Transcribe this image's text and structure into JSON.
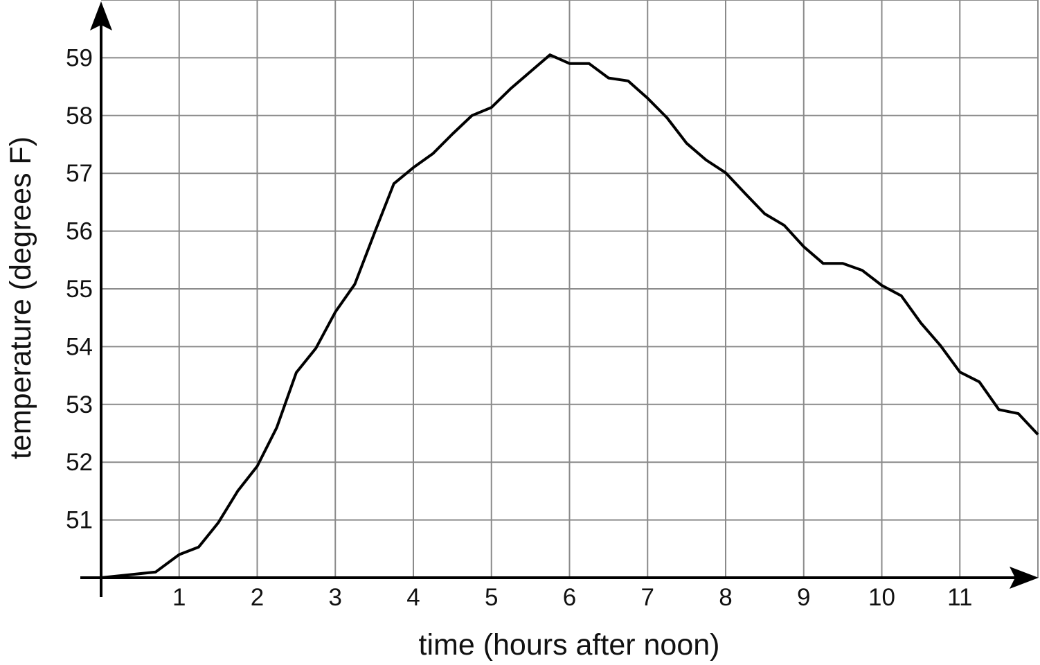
{
  "chart_data": {
    "type": "line",
    "title": "",
    "xlabel": "time (hours after noon)",
    "ylabel": "temperature (degrees F)",
    "xlim": [
      0,
      12
    ],
    "ylim": [
      50,
      60
    ],
    "grid": true,
    "x_ticks": [
      1,
      2,
      3,
      4,
      5,
      6,
      7,
      8,
      9,
      10,
      11
    ],
    "y_ticks": [
      51,
      52,
      53,
      54,
      55,
      56,
      57,
      58,
      59
    ],
    "line_color": "#000000",
    "grid_color": "#8a8a8a",
    "series": [
      {
        "x": [
          0,
          0.7,
          1,
          1.25,
          1.5,
          1.75,
          2,
          2.25,
          2.5,
          2.75,
          3,
          3.25,
          3.5,
          3.75,
          4,
          4.25,
          4.5,
          4.75,
          5,
          5.25,
          5.5,
          5.75,
          6,
          6.25,
          6.5,
          6.75,
          7,
          7.25,
          7.5,
          7.75,
          8,
          8.25,
          8.5,
          8.75,
          9,
          9.25,
          9.5,
          9.75,
          10,
          10.25,
          10.5,
          10.75,
          11,
          11.25,
          11.5,
          11.75,
          12
        ],
        "y": [
          50,
          50.1,
          50.4,
          50.53,
          50.95,
          51.5,
          51.93,
          52.6,
          53.55,
          53.97,
          54.6,
          55.08,
          55.96,
          56.82,
          57.1,
          57.34,
          57.68,
          58.0,
          58.14,
          58.47,
          58.76,
          59.05,
          58.9,
          58.9,
          58.65,
          58.6,
          58.3,
          57.96,
          57.52,
          57.23,
          57.01,
          56.65,
          56.3,
          56.1,
          55.73,
          55.44,
          55.44,
          55.32,
          55.06,
          54.88,
          54.41,
          54.02,
          53.56,
          53.39,
          52.91,
          52.84,
          52.48
        ]
      }
    ]
  }
}
